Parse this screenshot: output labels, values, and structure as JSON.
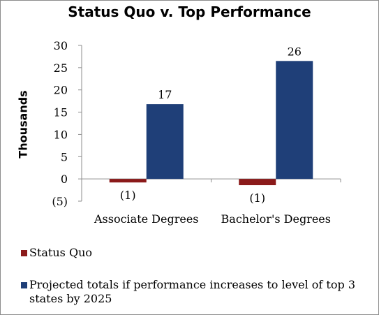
{
  "chart_data": {
    "type": "bar",
    "title": "Status Quo v. Top Performance",
    "ylabel": "Thousands",
    "categories": [
      "Associate Degrees",
      "Bachelor's Degrees"
    ],
    "ylim": [
      -5,
      30
    ],
    "yticks": [
      "30",
      "25",
      "20",
      "15",
      "10",
      "5",
      "0",
      "(5)"
    ],
    "ytick_values": [
      30,
      25,
      20,
      15,
      10,
      5,
      0,
      -5
    ],
    "series": [
      {
        "name": "Status Quo",
        "values": [
          -0.8,
          -1.4
        ],
        "labels": [
          "(1)",
          "(1)"
        ],
        "color": "#8b1a1a"
      },
      {
        "name": "Projected totals if performance increases to level of top 3 states by 2025",
        "values": [
          16.8,
          26.5
        ],
        "labels": [
          "17",
          "26"
        ],
        "color": "#1f3f78"
      }
    ],
    "legend_position": "bottom",
    "grid": false
  }
}
